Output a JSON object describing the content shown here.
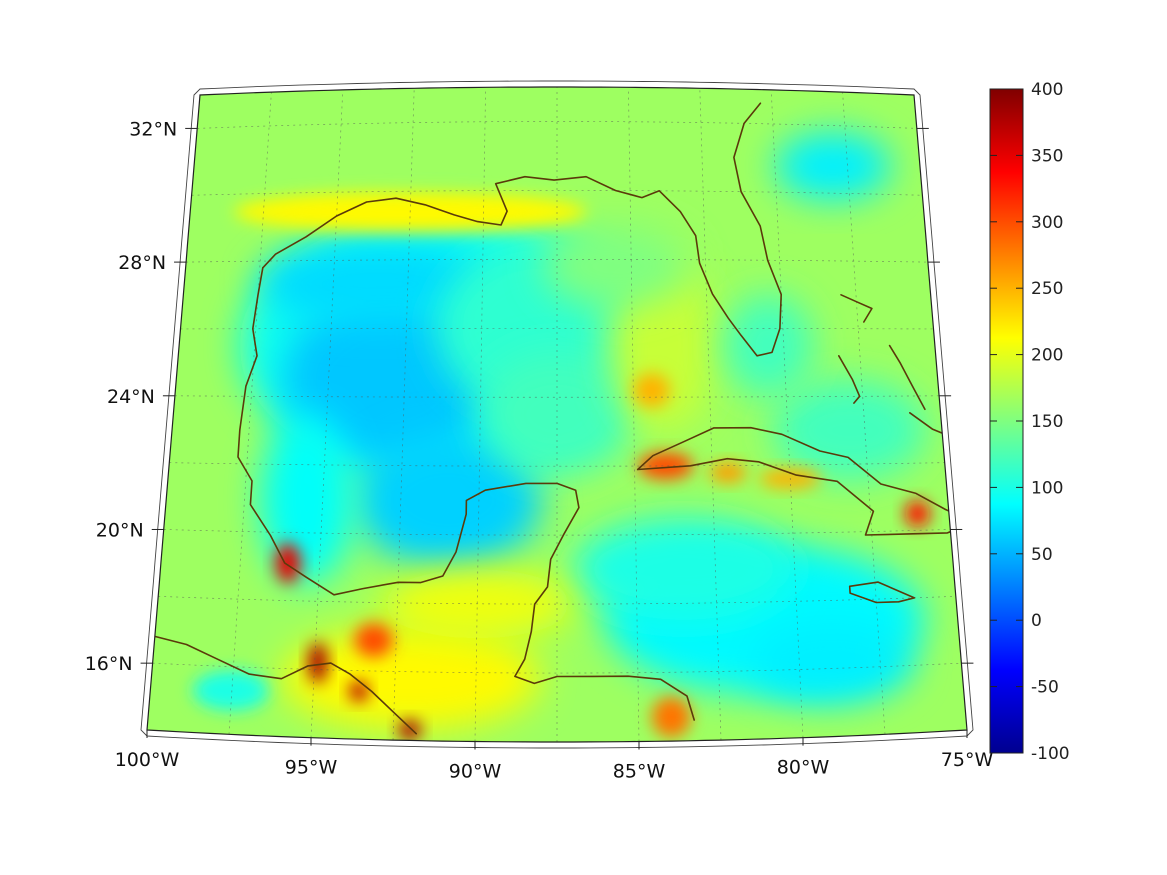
{
  "map": {
    "projection": "conic",
    "lon_range": [
      -100,
      -75
    ],
    "lat_range": [
      14,
      33
    ],
    "grid": "on",
    "lon_tick_labels": [
      "100°W",
      "95°W",
      "90°W",
      "85°W",
      "80°W",
      "75°W"
    ],
    "lat_tick_labels": [
      "32°N",
      "28°N",
      "24°N",
      "20°N",
      "16°N"
    ],
    "colormap": "jet",
    "coastline_color": "#5a3a0a",
    "land_mask": "none"
  },
  "colorbar": {
    "position": "right",
    "range": [
      -100,
      400
    ],
    "tick_labels": [
      "400",
      "350",
      "300",
      "250",
      "200",
      "150",
      "100",
      "50",
      "0",
      "-50",
      "-100"
    ]
  },
  "field": {
    "description_values": "gridded scalar field, roughly 50–120 over deep Gulf of Mexico and Caribbean, 150–200 over land and shelf, up to ~350–400 at coastal hotspots",
    "typical_open_water": 80,
    "typical_land": 165,
    "hotspot_max": 380
  }
}
